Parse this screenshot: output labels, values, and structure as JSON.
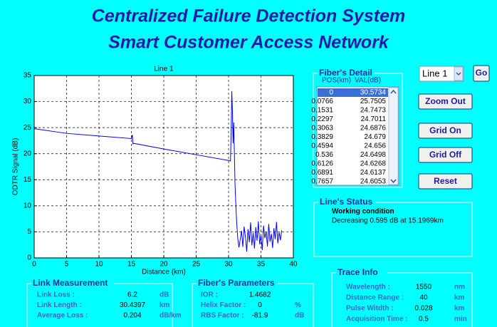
{
  "header": {
    "title": "Centralized Failure Detection System",
    "subtitle": "Smart Customer Access Network"
  },
  "chart_data": {
    "type": "line",
    "title": "Line 1",
    "xlabel": "Distance (km)",
    "ylabel": "ODTR Signal (dB)",
    "x": [
      0,
      5,
      10,
      15,
      15.15,
      15.25,
      15.3,
      20,
      25,
      30,
      30.3,
      30.4,
      30.5,
      30.6,
      30.7,
      30.8,
      30.9,
      31,
      31.2,
      31.4,
      31.6,
      31.8,
      32,
      32.2,
      32.4,
      32.6,
      32.8,
      33,
      33.2,
      33.4,
      33.6,
      33.8,
      34,
      34.2,
      34.4,
      34.6,
      34.8,
      35,
      35.2,
      35.4,
      35.6,
      35.8,
      36,
      36.2,
      36.4,
      36.6,
      36.8,
      37,
      37.2,
      37.4,
      37.6,
      37.8,
      38,
      38.2
    ],
    "values": [
      24.8,
      23.9,
      23.4,
      22.9,
      23.6,
      21.9,
      22.0,
      20.9,
      19.8,
      18.7,
      18.6,
      24,
      32,
      28,
      22,
      26,
      20,
      14,
      8,
      4,
      2,
      3.5,
      5.2,
      2.1,
      6.0,
      4.1,
      1.2,
      5.5,
      3.0,
      6.8,
      2.4,
      4.8,
      1.8,
      5.9,
      3.3,
      7.0,
      2.6,
      4.4,
      1.5,
      6.2,
      3.8,
      5.0,
      2.2,
      6.5,
      3.1,
      4.6,
      1.9,
      5.7,
      3.6,
      6.9,
      2.8,
      4.9,
      3.4,
      5.3
    ],
    "color": "#0000ff",
    "xlim": [
      0,
      40
    ],
    "ylim": [
      0,
      35
    ],
    "xticks": [
      0,
      5,
      10,
      15,
      20,
      25,
      30,
      35,
      40
    ],
    "yticks": [
      0,
      5,
      10,
      15,
      20,
      25,
      30,
      35
    ],
    "grid": true
  },
  "fiber_detail": {
    "title": "Fiber's Detail",
    "columns": [
      "POS(km)",
      "VAL(dB)"
    ],
    "rows": [
      [
        "0",
        "30.5734"
      ],
      [
        "0.0766",
        "25.7505"
      ],
      [
        "0.1531",
        "24.7473"
      ],
      [
        "0.2297",
        "24.7011"
      ],
      [
        "0.3063",
        "24.6876"
      ],
      [
        "0.3829",
        "24.679"
      ],
      [
        "0.4594",
        "24.656"
      ],
      [
        "0.536",
        "24.6498"
      ],
      [
        "0.6126",
        "24.6268"
      ],
      [
        "0.6891",
        "24.6137"
      ],
      [
        "0.7657",
        "24.6053"
      ]
    ]
  },
  "controls": {
    "line_select": "Line 1",
    "go": "Go",
    "buttons": [
      "Zoom Out",
      "Grid On",
      "Grid Off",
      "Reset"
    ]
  },
  "line_status": {
    "title": "Line's Status",
    "condition": "Working condition",
    "message": "Decreasing 0.595 dB at 15.1969km"
  },
  "link_measurement": {
    "title": "Link Measurement",
    "rows": [
      [
        "Link Loss :",
        "6.2",
        "dB"
      ],
      [
        "Link Length :",
        "30.4397",
        "km"
      ],
      [
        "Average Loss :",
        "0.204",
        "dB/km"
      ]
    ]
  },
  "fiber_parameters": {
    "title": "Fiber's Parameters",
    "rows": [
      [
        "IOR :",
        "1.4682",
        ""
      ],
      [
        "Helix Factor :",
        "0",
        "%"
      ],
      [
        "RBS Factor :",
        "-81.9",
        "dB"
      ]
    ]
  },
  "trace_info": {
    "title": "Trace Info",
    "rows": [
      [
        "Wavelength :",
        "1550",
        "nm"
      ],
      [
        "Distance Range :",
        "40",
        "km"
      ],
      [
        "Pulse Witdth :",
        "0.028",
        "km"
      ],
      [
        "Acquisition Time :",
        "0.5",
        "min"
      ]
    ]
  }
}
